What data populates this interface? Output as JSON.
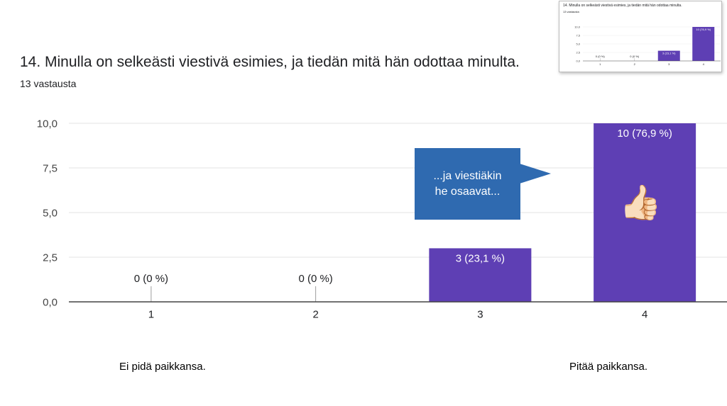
{
  "title": "14. Minulla on selkeästi viestivä esimies, ja tiedän mitä hän odottaa minulta.",
  "subtitle": "13 vastausta",
  "callout_text": "...ja viestiäkin\nhe osaavat...",
  "thumb_emoji": "👍🏻",
  "scale_left_label": "Ei pidä paikkansa.",
  "scale_right_label": "Pitää paikkansa.",
  "colors": {
    "bar": "#5e3fb4",
    "callout": "#2f6ab0",
    "grid": "#e3e3e3",
    "axis": "#444444"
  },
  "chart_data": {
    "type": "bar",
    "categories": [
      "1",
      "2",
      "3",
      "4"
    ],
    "values": [
      0,
      0,
      3,
      10
    ],
    "data_labels": [
      "0 (0 %)",
      "0 (0 %)",
      "3 (23,1 %)",
      "10 (76,9 %)"
    ],
    "y_ticks": [
      "0,0",
      "2,5",
      "5,0",
      "7,5",
      "10,0"
    ],
    "ylim": [
      0,
      10
    ],
    "grid": true
  }
}
